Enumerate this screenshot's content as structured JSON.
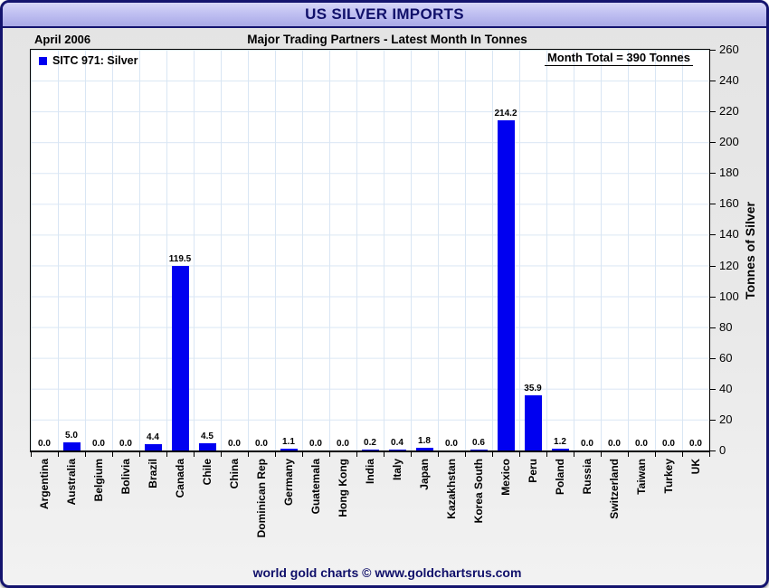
{
  "window": {
    "title": "US SILVER IMPORTS"
  },
  "header": {
    "date": "April 2006",
    "subtitle": "Major Trading Partners - Latest Month In Tonnes"
  },
  "legend": {
    "label": "SITC 971: Silver"
  },
  "annotations": {
    "month_total": "Month Total = 390 Tonnes"
  },
  "footer": {
    "credit": "world gold charts © www.goldchartsrus.com"
  },
  "colors": {
    "bar": "#0000f0",
    "accent_navy": "#10106a",
    "grid": "#d9e6f4",
    "plot_bg": "#ffffff",
    "chart_bg": "#e8e8e8",
    "titlebar_bg": "#bcbcf0"
  },
  "chart_data": {
    "type": "bar",
    "title": "US SILVER IMPORTS",
    "subtitle": "Major Trading Partners - Latest Month In Tonnes",
    "period": "April 2006",
    "series_name": "SITC 971: Silver",
    "month_total_tonnes": 390,
    "categories": [
      "Argentina",
      "Australia",
      "Belgium",
      "Bolivia",
      "Brazil",
      "Canada",
      "Chile",
      "China",
      "Dominican Rep",
      "Germany",
      "Guatemala",
      "Hong Kong",
      "India",
      "Italy",
      "Japan",
      "Kazakhstan",
      "Korea South",
      "Mexico",
      "Peru",
      "Poland",
      "Russia",
      "Switzerland",
      "Taiwan",
      "Turkey",
      "UK"
    ],
    "values": [
      0.0,
      5.0,
      0.0,
      0.0,
      4.4,
      119.5,
      4.5,
      0.0,
      0.0,
      1.1,
      0.0,
      0.0,
      0.2,
      0.4,
      1.8,
      0.0,
      0.6,
      214.2,
      35.9,
      1.2,
      0.0,
      0.0,
      0.0,
      0.0,
      0.0
    ],
    "xlabel": "",
    "ylabel": "Tonnes of Silver",
    "ylim": [
      0,
      260
    ],
    "ytick_step": 20,
    "grid": true,
    "legend_position": "top-left",
    "yaxis_side": "right",
    "bar_color": "#0000f0"
  }
}
